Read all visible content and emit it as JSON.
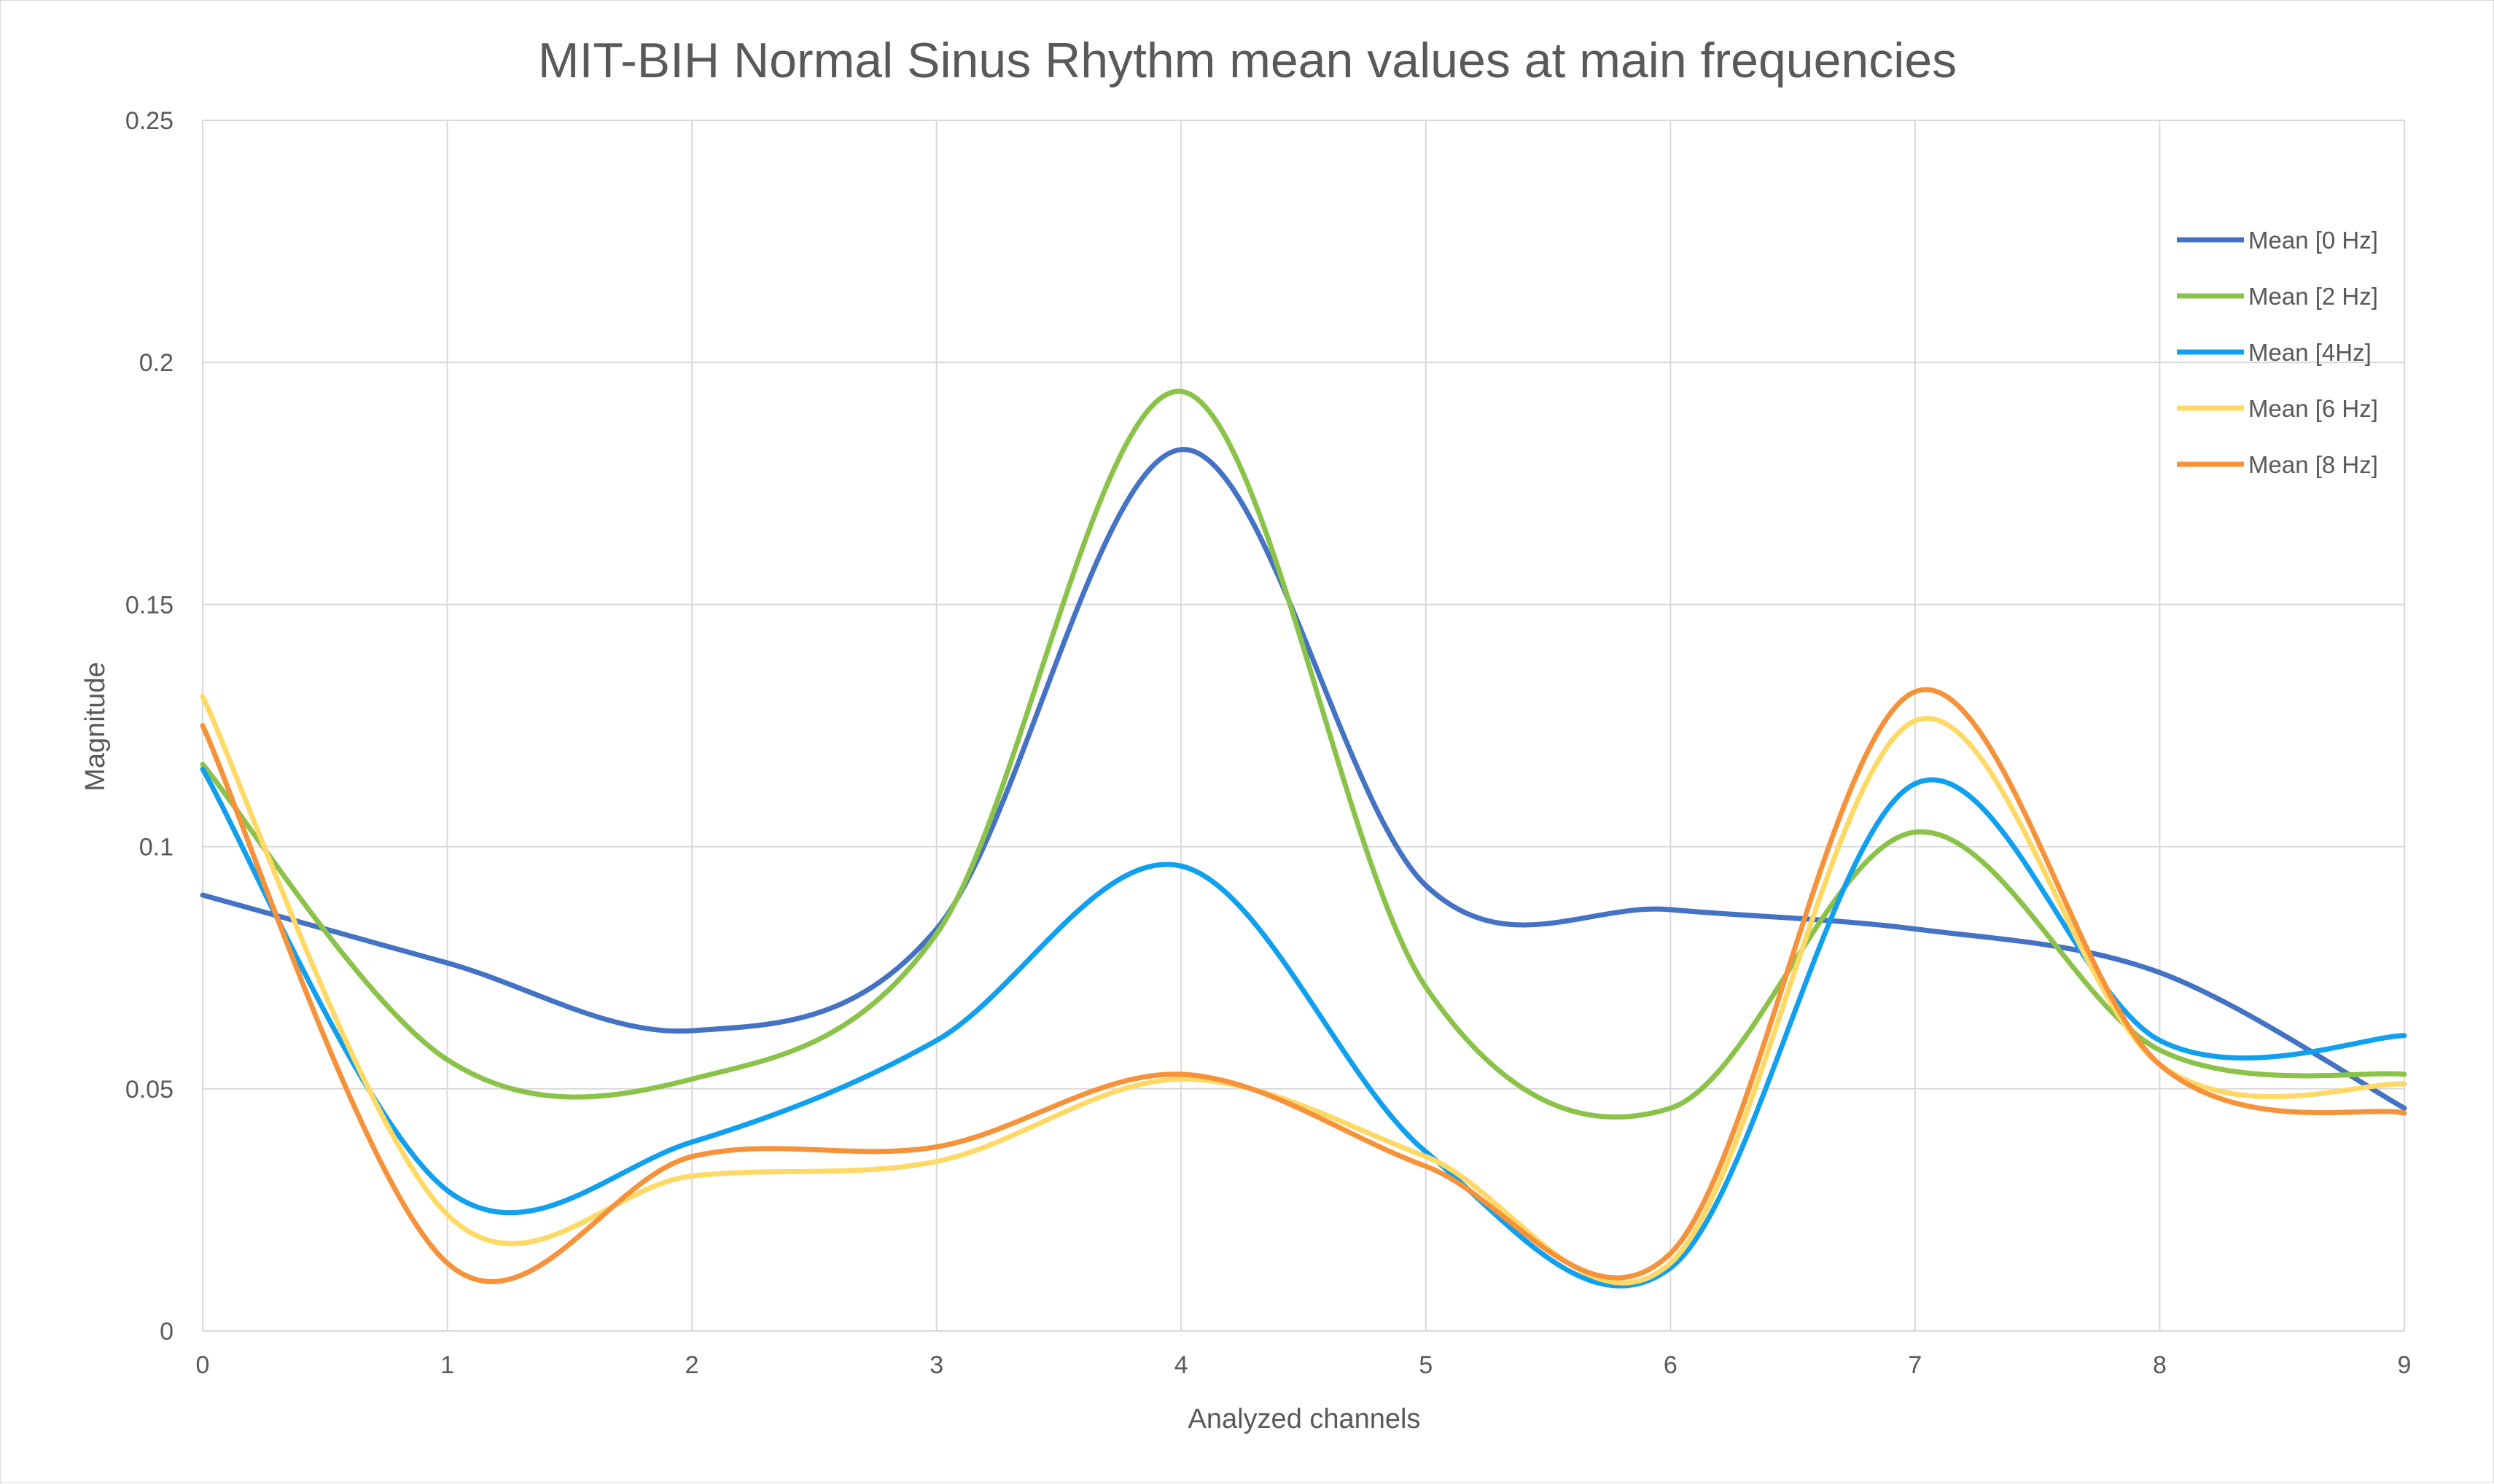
{
  "chart_data": {
    "type": "line",
    "title": "MIT-BIH Normal Sinus Rhythm mean values at main frequencies",
    "xlabel": "Analyzed channels",
    "ylabel": "Magnitude",
    "xlim": [
      0,
      9
    ],
    "ylim": [
      0,
      0.25
    ],
    "x": [
      0,
      1,
      2,
      3,
      4,
      5,
      6,
      7,
      8,
      9
    ],
    "x_tick_labels": [
      "0",
      "1",
      "2",
      "3",
      "4",
      "5",
      "6",
      "7",
      "8",
      "9"
    ],
    "y_tick_labels": [
      "0",
      "0.05",
      "0.1",
      "0.15",
      "0.2",
      "0.25"
    ],
    "grid": true,
    "smooth": true,
    "legend_position": "top-right",
    "series": [
      {
        "name": "Mean [0 Hz]",
        "color": "#4472C4",
        "values": [
          0.09,
          0.076,
          0.062,
          0.083,
          0.182,
          0.092,
          0.087,
          0.083,
          0.074,
          0.046
        ]
      },
      {
        "name": "Mean [2 Hz]",
        "color": "#8BC34A",
        "values": [
          0.117,
          0.056,
          0.052,
          0.082,
          0.194,
          0.071,
          0.046,
          0.103,
          0.058,
          0.053
        ]
      },
      {
        "name": "Mean [4Hz]",
        "color": "#11A0EE",
        "values": [
          0.116,
          0.029,
          0.039,
          0.06,
          0.096,
          0.037,
          0.013,
          0.113,
          0.06,
          0.061
        ]
      },
      {
        "name": "Mean [6 Hz]",
        "color": "#FFD966",
        "values": [
          0.131,
          0.024,
          0.032,
          0.035,
          0.052,
          0.036,
          0.014,
          0.126,
          0.055,
          0.051
        ]
      },
      {
        "name": "Mean [8 Hz]",
        "color": "#F6923A",
        "values": [
          0.125,
          0.014,
          0.036,
          0.038,
          0.053,
          0.034,
          0.016,
          0.132,
          0.055,
          0.045
        ]
      }
    ]
  }
}
